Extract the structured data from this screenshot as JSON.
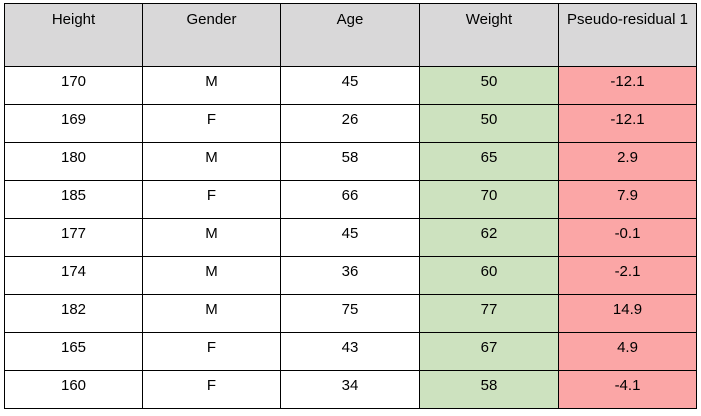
{
  "table": {
    "headers": {
      "height": "Height",
      "gender": "Gender",
      "age": "Age",
      "weight": "Weight",
      "residual": "Pseudo-residual 1"
    },
    "rows": [
      {
        "height": "170",
        "gender": "M",
        "age": "45",
        "weight": "50",
        "residual": "-12.1"
      },
      {
        "height": "169",
        "gender": "F",
        "age": "26",
        "weight": "50",
        "residual": "-12.1"
      },
      {
        "height": "180",
        "gender": "M",
        "age": "58",
        "weight": "65",
        "residual": "2.9"
      },
      {
        "height": "185",
        "gender": "F",
        "age": "66",
        "weight": "70",
        "residual": "7.9"
      },
      {
        "height": "177",
        "gender": "M",
        "age": "45",
        "weight": "62",
        "residual": "-0.1"
      },
      {
        "height": "174",
        "gender": "M",
        "age": "36",
        "weight": "60",
        "residual": "-2.1"
      },
      {
        "height": "182",
        "gender": "M",
        "age": "75",
        "weight": "77",
        "residual": "14.9"
      },
      {
        "height": "165",
        "gender": "F",
        "age": "43",
        "weight": "67",
        "residual": "4.9"
      },
      {
        "height": "160",
        "gender": "F",
        "age": "34",
        "weight": "58",
        "residual": "-4.1"
      }
    ]
  },
  "colors": {
    "header_background": "#d9d8d9",
    "weight_column_background": "#cde2bf",
    "residual_column_background": "#fba6a6",
    "border": "#000000"
  }
}
